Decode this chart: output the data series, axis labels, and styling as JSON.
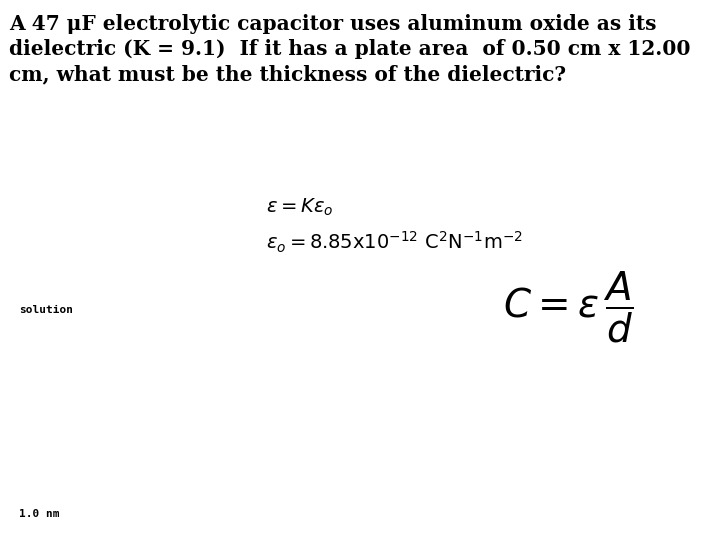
{
  "background_color": "#ffffff",
  "title_lines": [
    "A 47 μF electrolytic capacitor uses aluminum oxide as its",
    "dielectric (K = 9.1)  If it has a plate area  of 0.50 cm x 12.00",
    "cm, what must be the thickness of the dielectric?"
  ],
  "solution_label": "solution",
  "bottom_label": "1.0 nm",
  "fig_width": 7.2,
  "fig_height": 5.4,
  "dpi": 100
}
